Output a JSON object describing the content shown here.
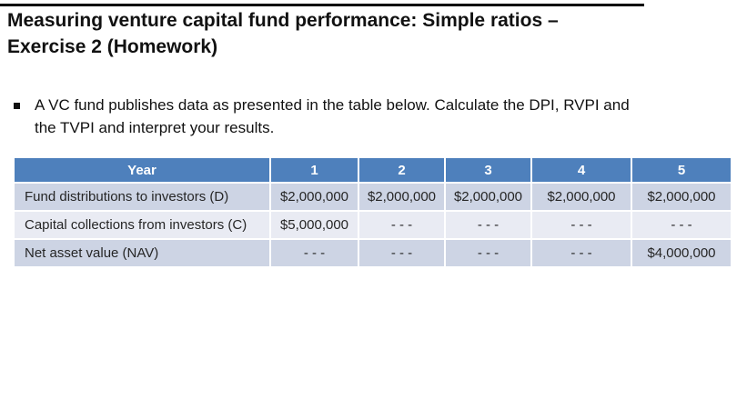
{
  "slide": {
    "title_lines": [
      "Measuring venture capital fund performance: Simple ratios –",
      "Exercise 2 (Homework)"
    ],
    "bullet_lines": [
      "A VC fund publishes data as presented in the table below. Calculate the DPI, RVPI and",
      "the TVPI and interpret your results."
    ]
  },
  "table": {
    "header": [
      "Year",
      "1",
      "2",
      "3",
      "4",
      "5"
    ],
    "rows": [
      {
        "label": "Fund distributions to investors (D)",
        "values": [
          "$2,000,000",
          "$2,000,000",
          "$2,000,000",
          "$2,000,000",
          "$2,000,000"
        ]
      },
      {
        "label": "Capital collections from investors (C)",
        "values": [
          "$5,000,000",
          "- - -",
          "- - -",
          "- - -",
          "- - -"
        ]
      },
      {
        "label": "Net asset value (NAV)",
        "values": [
          "- - -",
          "- - -",
          "- - -",
          "- - -",
          "$4,000,000"
        ]
      }
    ]
  },
  "colors": {
    "header_bg": "#4e80bc",
    "band_dark": "#cdd4e4",
    "band_light": "#e9ebf3",
    "header_text": "#ffffff",
    "cell_text": "#262626",
    "title_text": "#111111"
  }
}
